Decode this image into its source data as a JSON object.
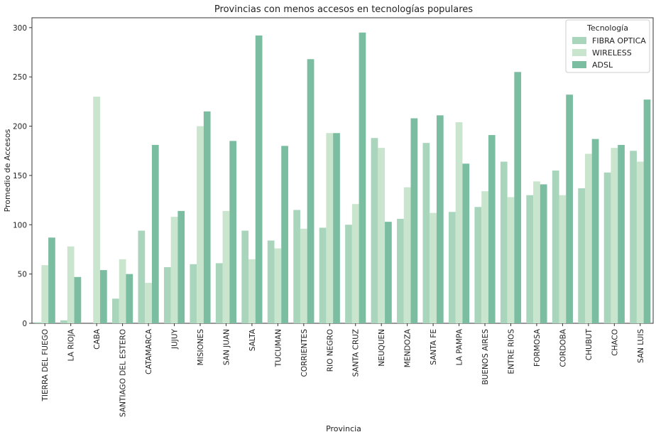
{
  "chart_data": {
    "type": "bar",
    "title": "Provincias con menos accesos en tecnologías populares",
    "xlabel": "Provincia",
    "ylabel": "Promedio de Accesos",
    "ylim": [
      0,
      310
    ],
    "yticks": [
      0,
      50,
      100,
      150,
      200,
      250,
      300
    ],
    "grid": false,
    "legend": {
      "title": "Tecnología",
      "position": "top-right"
    },
    "categories": [
      "TIERRA DEL FUEGO",
      "LA RIOJA",
      "CABA",
      "SANTIAGO DEL ESTERO",
      "CATAMARCA",
      "JUJUY",
      "MISIONES",
      "SAN JUAN",
      "SALTA",
      "TUCUMAN",
      "CORRIENTES",
      "RIO NEGRO",
      "SANTA CRUZ",
      "NEUQUEN",
      "MENDOZA",
      "SANTA FE",
      "LA PAMPA",
      "BUENOS AIRES",
      "ENTRE RIOS",
      "FORMOSA",
      "CORDOBA",
      "CHUBUT",
      "CHACO",
      "SAN LUIS"
    ],
    "series": [
      {
        "name": "FIBRA OPTICA",
        "color": "#a8d5bb",
        "values": [
          1,
          3,
          0,
          25,
          94,
          57,
          60,
          61,
          94,
          84,
          115,
          97,
          100,
          188,
          106,
          183,
          113,
          118,
          164,
          130,
          155,
          137,
          153,
          175
        ]
      },
      {
        "name": "WIRELESS",
        "color": "#c9e5cd",
        "values": [
          59,
          78,
          230,
          65,
          41,
          108,
          200,
          114,
          65,
          76,
          96,
          193,
          121,
          178,
          138,
          112,
          204,
          134,
          128,
          144,
          130,
          172,
          178,
          164
        ]
      },
      {
        "name": "ADSL",
        "color": "#7bbda1",
        "values": [
          87,
          47,
          54,
          50,
          181,
          114,
          215,
          185,
          292,
          180,
          268,
          193,
          295,
          103,
          208,
          211,
          162,
          191,
          255,
          141,
          232,
          187,
          181,
          227
        ]
      }
    ]
  }
}
